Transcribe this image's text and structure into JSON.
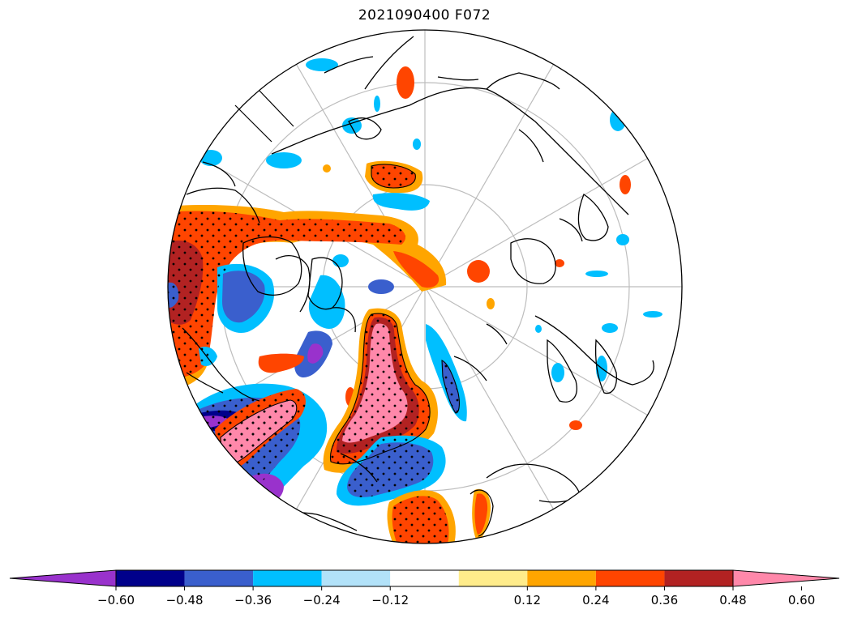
{
  "title": "2021090400 F072",
  "colorbar": {
    "extend": "both",
    "levels": [
      -0.72,
      -0.6,
      -0.48,
      -0.36,
      -0.24,
      -0.12,
      0.12,
      0.24,
      0.36,
      0.48,
      0.6,
      0.72
    ],
    "colors": [
      "#9932cc",
      "#00008b",
      "#3a5fcd",
      "#00bfff",
      "#b2e2f9",
      "#ffffff",
      "#ffec8b",
      "#ffa500",
      "#ff4500",
      "#b22222",
      "#ff88aa"
    ],
    "tick_values": [
      -0.6,
      -0.48,
      -0.36,
      -0.24,
      -0.12,
      0.12,
      0.24,
      0.36,
      0.48,
      0.6
    ],
    "tick_labels": [
      "−0.60",
      "−0.48",
      "−0.36",
      "−0.24",
      "−0.12",
      "0.12",
      "0.24",
      "0.36",
      "0.48",
      "0.60"
    ]
  },
  "map": {
    "projection": "north-polar-stereographic",
    "boundary": "circle",
    "graticule": true,
    "stippling": "significance-dots",
    "coast_color": "#000000",
    "grid_color": "#b8b8b8"
  }
}
